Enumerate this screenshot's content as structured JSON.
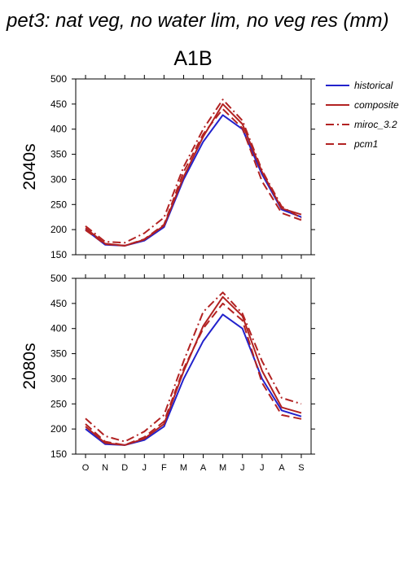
{
  "figure": {
    "title": "pet3: nat veg, no water lim, no veg res (mm)",
    "scenario": "A1B"
  },
  "legend": {
    "placement": "right",
    "entries": [
      {
        "name": "historical",
        "color": "#2222cc",
        "dash": "solid"
      },
      {
        "name": "composite",
        "color": "#b22222",
        "dash": "solid"
      },
      {
        "name": "miroc_3.2",
        "color": "#b22222",
        "dash": "dashdot"
      },
      {
        "name": "pcm1",
        "color": "#b22222",
        "dash": "dash"
      }
    ]
  },
  "chart_data": [
    {
      "type": "line",
      "panel_label": "2040s",
      "categories": [
        "O",
        "N",
        "D",
        "J",
        "F",
        "M",
        "A",
        "M",
        "J",
        "J",
        "A",
        "S"
      ],
      "ylim": [
        150,
        500
      ],
      "yticks": [
        150,
        200,
        250,
        300,
        350,
        400,
        450,
        500
      ],
      "series": [
        {
          "name": "historical",
          "values": [
            200,
            170,
            168,
            178,
            205,
            300,
            375,
            428,
            400,
            310,
            240,
            225
          ]
        },
        {
          "name": "composite",
          "values": [
            203,
            172,
            168,
            180,
            208,
            305,
            385,
            450,
            410,
            315,
            242,
            230
          ]
        },
        {
          "name": "miroc_3.2",
          "values": [
            207,
            176,
            174,
            193,
            224,
            325,
            400,
            459,
            417,
            318,
            246,
            223
          ]
        },
        {
          "name": "pcm1",
          "values": [
            199,
            171,
            168,
            181,
            210,
            315,
            390,
            440,
            402,
            296,
            233,
            219
          ]
        }
      ]
    },
    {
      "type": "line",
      "panel_label": "2080s",
      "categories": [
        "O",
        "N",
        "D",
        "J",
        "F",
        "M",
        "A",
        "M",
        "J",
        "J",
        "A",
        "S"
      ],
      "ylim": [
        150,
        500
      ],
      "yticks": [
        150,
        200,
        250,
        300,
        350,
        400,
        450,
        500
      ],
      "series": [
        {
          "name": "historical",
          "values": [
            200,
            170,
            168,
            178,
            205,
            300,
            375,
            428,
            400,
            300,
            237,
            225
          ]
        },
        {
          "name": "composite",
          "values": [
            205,
            172,
            168,
            181,
            210,
            315,
            405,
            463,
            425,
            316,
            243,
            232
          ]
        },
        {
          "name": "miroc_3.2",
          "values": [
            221,
            186,
            175,
            195,
            228,
            335,
            433,
            472,
            430,
            335,
            262,
            250
          ]
        },
        {
          "name": "pcm1",
          "values": [
            210,
            175,
            168,
            184,
            215,
            320,
            400,
            450,
            416,
            292,
            228,
            220
          ]
        }
      ]
    }
  ]
}
